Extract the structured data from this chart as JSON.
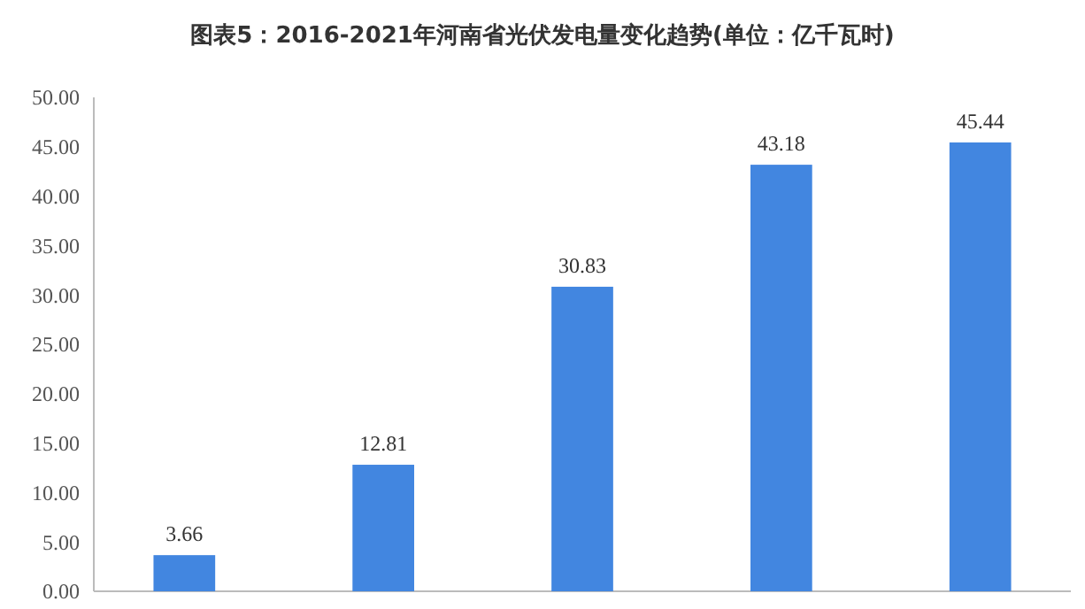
{
  "chart_data": {
    "type": "bar",
    "title": "图表5：2016-2021年河南省光伏发电量变化趋势(单位：亿千瓦时)",
    "categories": [
      null,
      null,
      null,
      null,
      null
    ],
    "values": [
      3.66,
      12.81,
      30.83,
      43.18,
      45.44
    ],
    "color": "#4286e0",
    "ylim": [
      0,
      50
    ],
    "yticks": [
      {
        "value": 0,
        "label": "0.00"
      },
      {
        "value": 5,
        "label": "5.00"
      },
      {
        "value": 10,
        "label": "10.00"
      },
      {
        "value": 15,
        "label": "15.00"
      },
      {
        "value": 20,
        "label": "20.00"
      },
      {
        "value": 25,
        "label": "25.00"
      },
      {
        "value": 30,
        "label": "30.00"
      },
      {
        "value": 35,
        "label": "35.00"
      },
      {
        "value": 40,
        "label": "40.00"
      },
      {
        "value": 45,
        "label": "45.00"
      },
      {
        "value": 50,
        "label": "50.00"
      }
    ],
    "data_labels": true,
    "grid": false
  }
}
